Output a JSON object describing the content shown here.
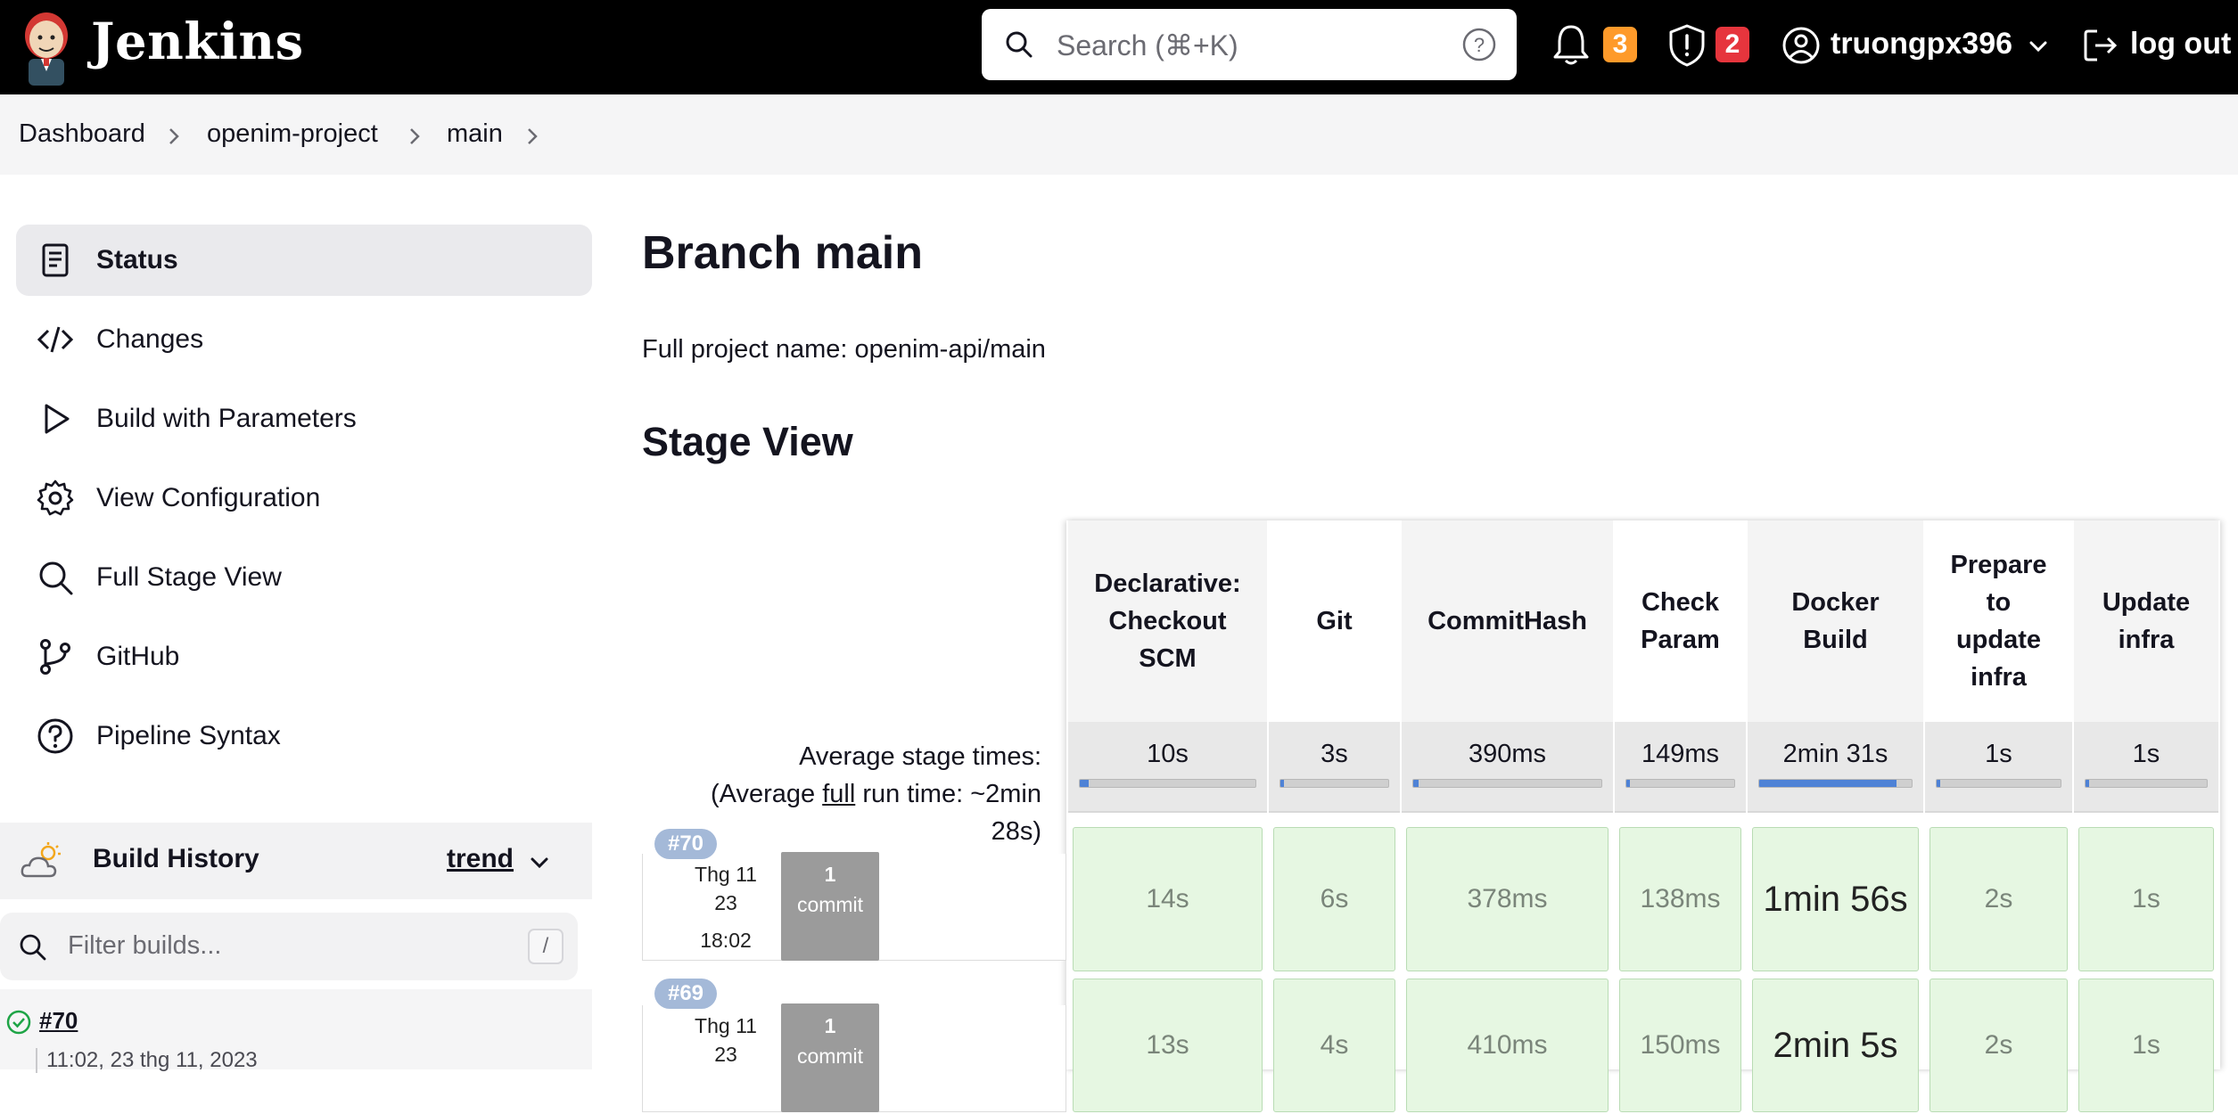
{
  "header": {
    "brand": "Jenkins",
    "search_placeholder": "Search (⌘+K)",
    "notifications_count": "3",
    "security_count": "2",
    "username": "truongpx396",
    "logout_label": "log out",
    "colors": {
      "bar": "#000000",
      "orange_badge": "#fe9a2a",
      "red_badge": "#e6353d"
    }
  },
  "breadcrumb": [
    "Dashboard",
    "openim-project",
    "main"
  ],
  "sidebar": {
    "items": [
      {
        "label": "Status",
        "icon": "document-icon",
        "active": true
      },
      {
        "label": "Changes",
        "icon": "code-icon"
      },
      {
        "label": "Build with Parameters",
        "icon": "play-icon"
      },
      {
        "label": "View Configuration",
        "icon": "gear-icon"
      },
      {
        "label": "Full Stage View",
        "icon": "search-icon"
      },
      {
        "label": "GitHub",
        "icon": "branch-icon"
      },
      {
        "label": "Pipeline Syntax",
        "icon": "help-icon"
      }
    ],
    "build_history": {
      "title": "Build History",
      "trend_label": "trend",
      "filter_placeholder": "Filter builds...",
      "filter_shortcut": "/",
      "entries": [
        {
          "number": "#70",
          "date": "11:02, 23 thg 11, 2023",
          "status": "success"
        }
      ]
    }
  },
  "main": {
    "title": "Branch main",
    "full_name": "Full project name: openim-api/main",
    "stage_view_title": "Stage View"
  },
  "stage_view": {
    "avg_label_1": "Average stage times:",
    "avg_label_2_pre": "(Average ",
    "avg_label_2_link": "full",
    "avg_label_2_post": " run time: ~2min",
    "avg_label_3": "28s)",
    "stages": [
      {
        "name": "Declarative: Checkout SCM",
        "lines": [
          "Declarative:",
          "Checkout",
          "SCM"
        ],
        "avg": "10s",
        "avg_fraction": 0.05
      },
      {
        "name": "Git",
        "lines": [
          "Git"
        ],
        "avg": "3s",
        "avg_fraction": 0.02
      },
      {
        "name": "CommitHash",
        "lines": [
          "CommitHash"
        ],
        "avg": "390ms",
        "avg_fraction": 0.01
      },
      {
        "name": "Check Param",
        "lines": [
          "Check",
          "Param"
        ],
        "avg": "149ms",
        "avg_fraction": 0.01
      },
      {
        "name": "Docker Build",
        "lines": [
          "Docker",
          "Build"
        ],
        "avg": "2min 31s",
        "avg_fraction": 0.9
      },
      {
        "name": "Prepare to update infra",
        "lines": [
          "Prepare",
          "to",
          "update",
          "infra"
        ],
        "avg": "1s",
        "avg_fraction": 0.01
      },
      {
        "name": "Update infra",
        "lines": [
          "Update",
          "infra"
        ],
        "avg": "1s",
        "avg_fraction": 0.01
      }
    ],
    "builds": [
      {
        "number": "#70",
        "date_1": "Thg 11",
        "date_2": "23",
        "time": "18:02",
        "commit_count": "1",
        "commit_label": "commit",
        "durations": [
          "14s",
          "6s",
          "378ms",
          "138ms",
          "1min 56s",
          "2s",
          "1s"
        ]
      },
      {
        "number": "#69",
        "date_1": "Thg 11",
        "date_2": "23",
        "time": "",
        "commit_count": "1",
        "commit_label": "commit",
        "durations": [
          "13s",
          "4s",
          "410ms",
          "150ms",
          "2min 5s",
          "2s",
          "1s"
        ]
      }
    ]
  }
}
